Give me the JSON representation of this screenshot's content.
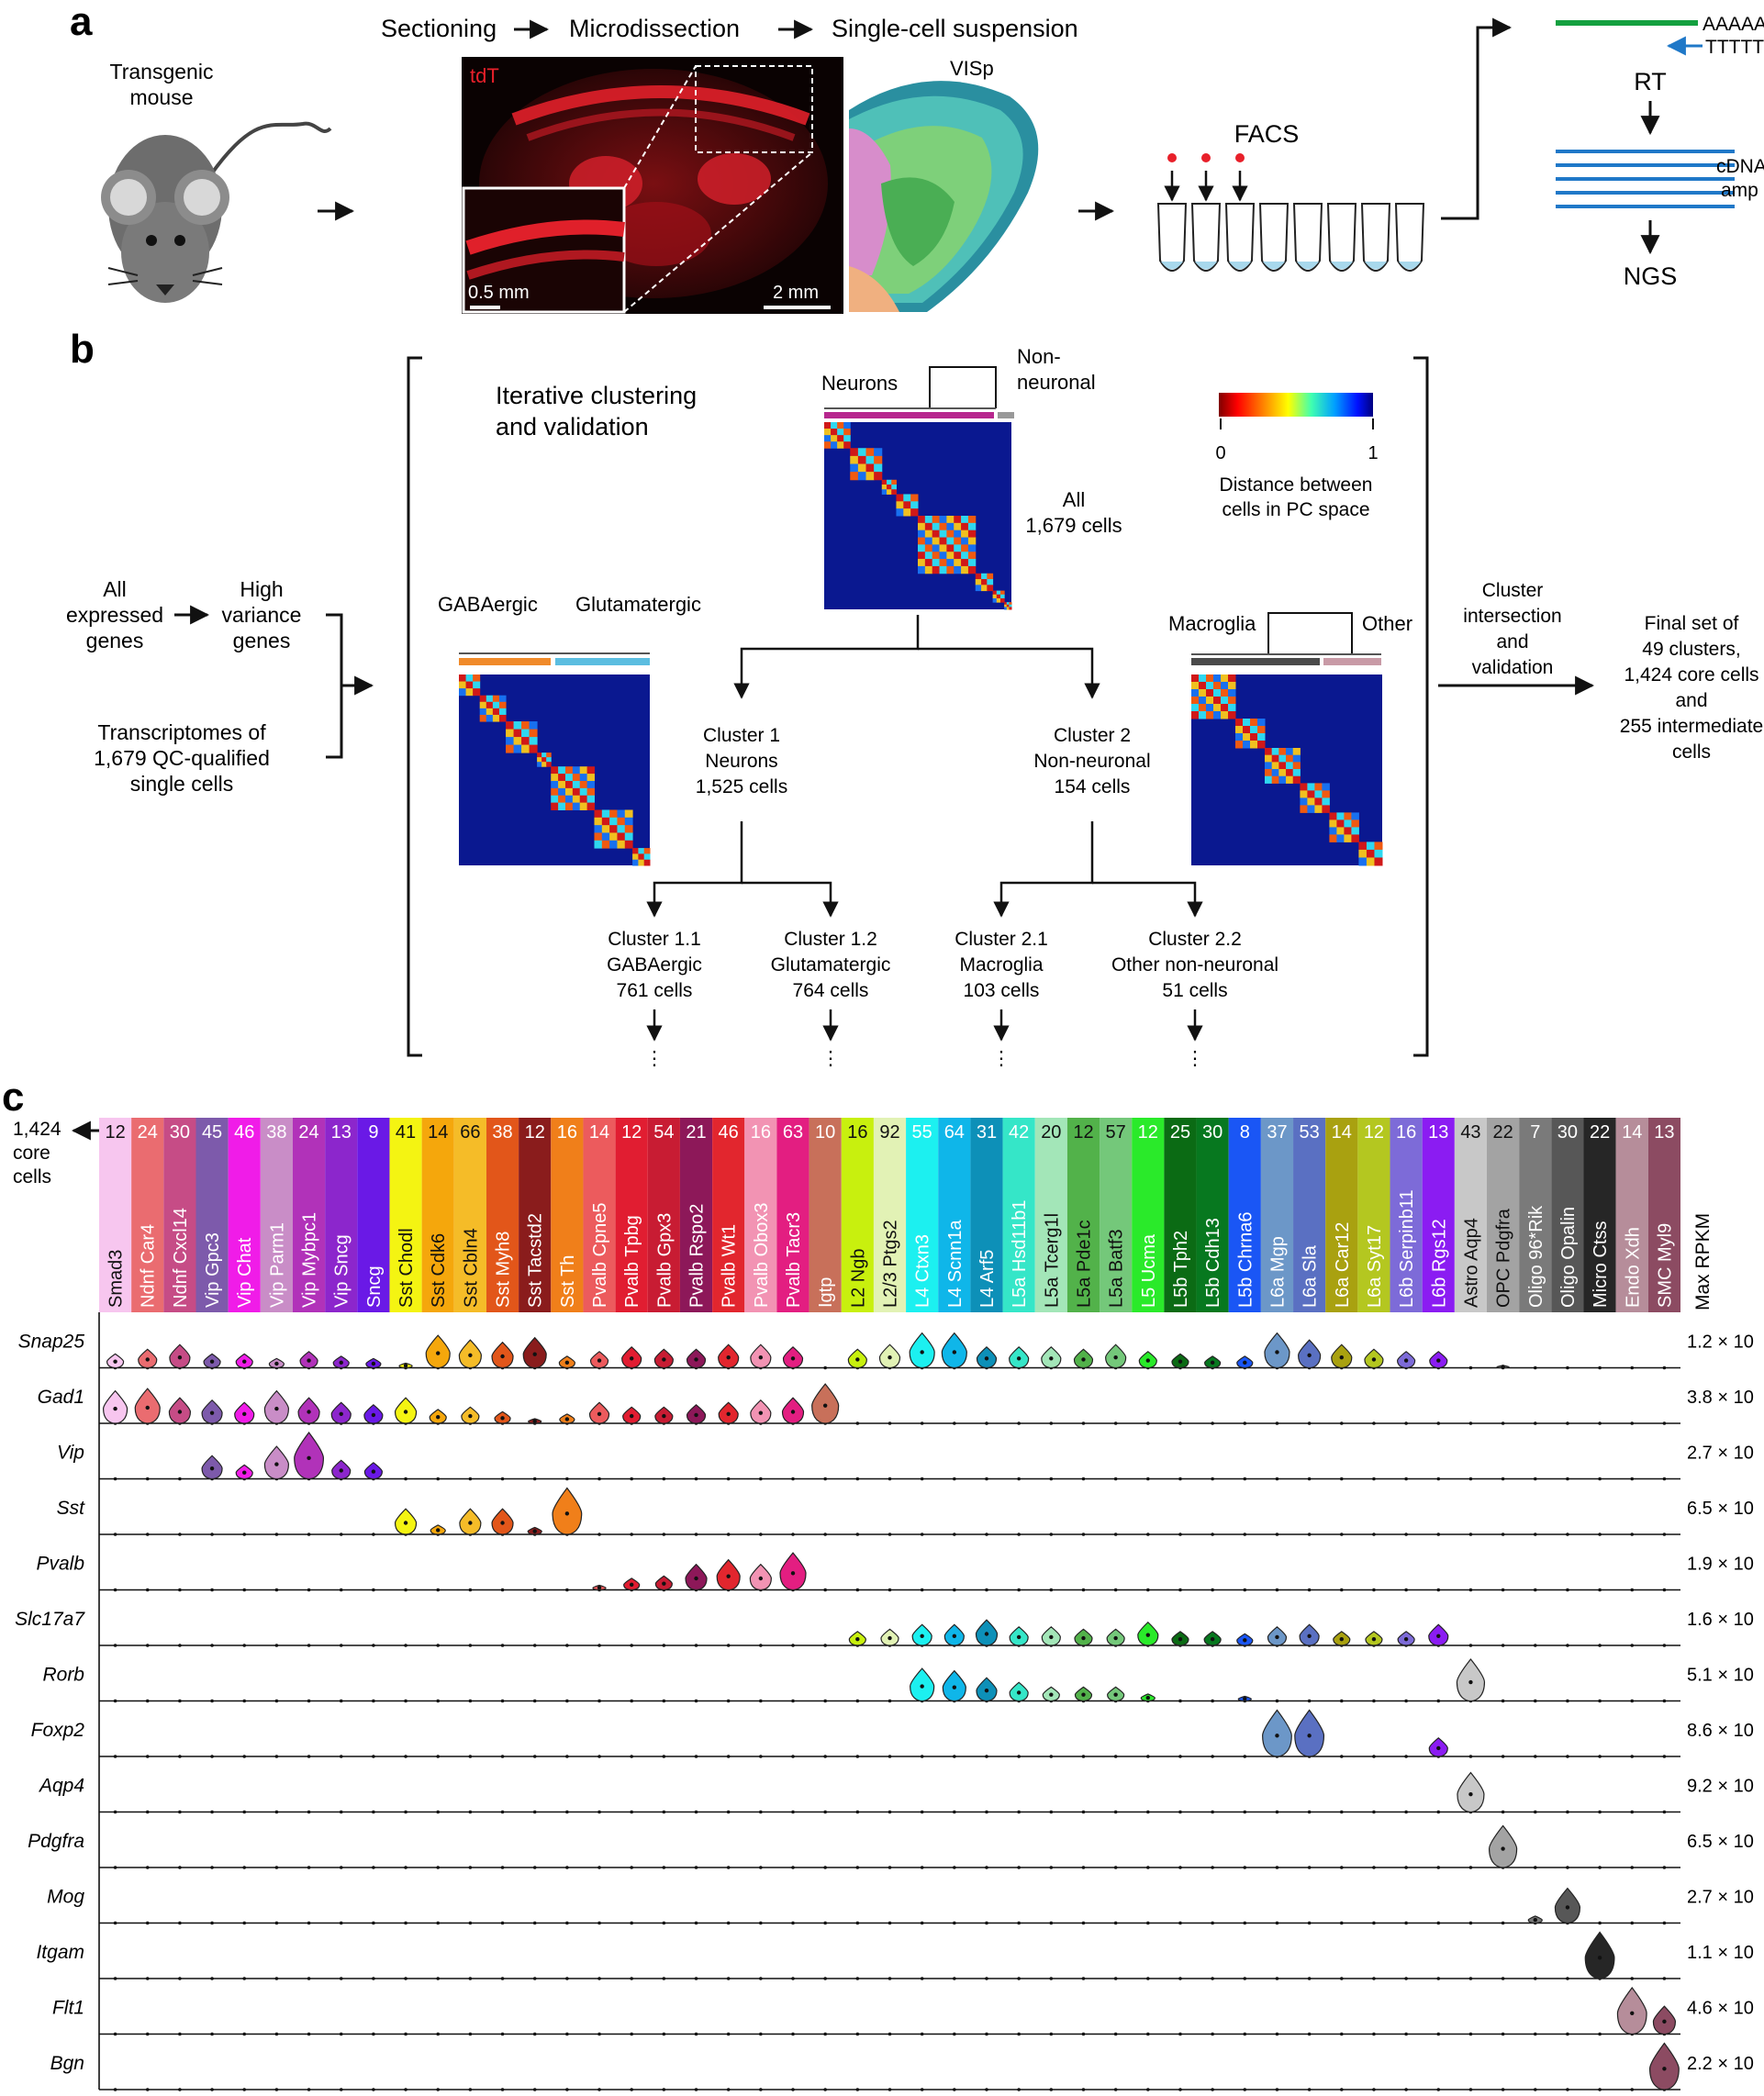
{
  "panels": {
    "a": "a",
    "b": "b",
    "c": "c"
  },
  "a": {
    "mouse_label": [
      "Transgenic",
      "mouse"
    ],
    "steps": [
      "Sectioning",
      "Microdissection",
      "Single-cell suspension"
    ],
    "tdt_label": "tdT",
    "scale_small": "0.5 mm",
    "scale_large": "2 mm",
    "region_label": "VISp",
    "facs_label": "FACS",
    "polya": "AAAAA",
    "oligo_t": "TTTTT",
    "rt_label": "RT",
    "cdna_label": [
      "cDNA",
      "amp"
    ],
    "ngs_label": "NGS"
  },
  "b": {
    "inputs": {
      "all_expressed": [
        "All",
        "expressed",
        "genes"
      ],
      "high_variance": [
        "High",
        "variance",
        "genes"
      ],
      "transcriptomes": [
        "Transcriptomes of",
        "1,679 QC-qualified",
        "single cells"
      ]
    },
    "iterative": [
      "Iterative clustering",
      "and validation"
    ],
    "top_tree": {
      "left": "Neurons",
      "right": [
        "Non-",
        "neuronal"
      ]
    },
    "all_cells": [
      "All",
      "1,679 cells"
    ],
    "colorbar": {
      "min": "0",
      "max": "1",
      "label": [
        "Distance between",
        "cells in PC space"
      ]
    },
    "left_tree": {
      "left": "GABAergic",
      "right": "Glutamatergic"
    },
    "right_tree": {
      "left": "Macroglia",
      "right": "Other"
    },
    "cluster1": [
      "Cluster 1",
      "Neurons",
      "1,525 cells"
    ],
    "cluster2": [
      "Cluster 2",
      "Non-neuronal",
      "154 cells"
    ],
    "sub": [
      [
        "Cluster 1.1",
        "GABAergic",
        "761 cells"
      ],
      [
        "Cluster 1.2",
        "Glutamatergic",
        "764 cells"
      ],
      [
        "Cluster 2.1",
        "Macroglia",
        "103 cells"
      ],
      [
        "Cluster 2.2",
        "Other non-neuronal",
        "51 cells"
      ]
    ],
    "ellipsis": "⋮",
    "intersection": [
      "Cluster",
      "intersection",
      "and",
      "validation"
    ],
    "final": [
      "Final set of",
      "49 clusters,",
      "1,424 core cells",
      "and",
      "255 intermediate",
      "cells"
    ]
  },
  "c": {
    "core_label": [
      "1,424",
      "core",
      "cells"
    ],
    "max_label": "Max RPKM",
    "clusters": [
      {
        "name": "Smad3",
        "count": "12",
        "color": "#f7c6ef",
        "dark": false
      },
      {
        "name": "Ndnf Car4",
        "count": "24",
        "color": "#ea6c70",
        "dark": true
      },
      {
        "name": "Ndnf Cxcl14",
        "count": "30",
        "color": "#c64c86",
        "dark": true
      },
      {
        "name": "Vip Gpc3",
        "count": "45",
        "color": "#7d5aab",
        "dark": true
      },
      {
        "name": "Vip Chat",
        "count": "46",
        "color": "#f01ce8",
        "dark": true
      },
      {
        "name": "Vip Parm1",
        "count": "38",
        "color": "#c98dc7",
        "dark": true
      },
      {
        "name": "Vip Mybpc1",
        "count": "24",
        "color": "#b132b9",
        "dark": true
      },
      {
        "name": "Vip Sncg",
        "count": "13",
        "color": "#8c26cc",
        "dark": true
      },
      {
        "name": "Sncg",
        "count": "9",
        "color": "#6a19e6",
        "dark": true
      },
      {
        "name": "Sst Chodl",
        "count": "41",
        "color": "#f4f412",
        "dark": false
      },
      {
        "name": "Sst Cdk6",
        "count": "14",
        "color": "#f5a70c",
        "dark": false
      },
      {
        "name": "Sst Cbln4",
        "count": "66",
        "color": "#f5bc28",
        "dark": false
      },
      {
        "name": "Sst Myh8",
        "count": "38",
        "color": "#e2561a",
        "dark": true
      },
      {
        "name": "Sst Tacstd2",
        "count": "12",
        "color": "#8a1c1c",
        "dark": true
      },
      {
        "name": "Sst Th",
        "count": "16",
        "color": "#f07f1a",
        "dark": true
      },
      {
        "name": "Pvalb Cpne5",
        "count": "14",
        "color": "#ec5b5d",
        "dark": true
      },
      {
        "name": "Pvalb Tpbg",
        "count": "12",
        "color": "#e11d31",
        "dark": true
      },
      {
        "name": "Pvalb Gpx3",
        "count": "54",
        "color": "#c81c33",
        "dark": true
      },
      {
        "name": "Pvalb Rspo2",
        "count": "21",
        "color": "#8d1859",
        "dark": true
      },
      {
        "name": "Pvalb Wt1",
        "count": "46",
        "color": "#e2262e",
        "dark": true
      },
      {
        "name": "Pvalb Obox3",
        "count": "16",
        "color": "#f293b3",
        "dark": true
      },
      {
        "name": "Pvalb Tacr3",
        "count": "63",
        "color": "#e31e81",
        "dark": true
      },
      {
        "name": "Igtp",
        "count": "10",
        "color": "#c8705a",
        "dark": true
      },
      {
        "name": "L2 Ngb",
        "count": "16",
        "color": "#c8f00e",
        "dark": false
      },
      {
        "name": "L2/3 Ptgs2",
        "count": "92",
        "color": "#e2f2b5",
        "dark": false
      },
      {
        "name": "L4 Ctxn3",
        "count": "55",
        "color": "#1cf0f0",
        "dark": true
      },
      {
        "name": "L4 Scnn1a",
        "count": "64",
        "color": "#0fb6e9",
        "dark": true
      },
      {
        "name": "L4 Arf5",
        "count": "31",
        "color": "#0d90b8",
        "dark": true
      },
      {
        "name": "L5a Hsd11b1",
        "count": "42",
        "color": "#35e6c8",
        "dark": true
      },
      {
        "name": "L5a Tcerg1l",
        "count": "20",
        "color": "#a3e6b8",
        "dark": false
      },
      {
        "name": "L5a Pde1c",
        "count": "12",
        "color": "#52b24a",
        "dark": false
      },
      {
        "name": "L5a Batf3",
        "count": "57",
        "color": "#74c87a",
        "dark": false
      },
      {
        "name": "L5 Ucma",
        "count": "12",
        "color": "#2aea2a",
        "dark": true
      },
      {
        "name": "L5b Tph2",
        "count": "25",
        "color": "#0b6b14",
        "dark": true
      },
      {
        "name": "L5b Cdh13",
        "count": "30",
        "color": "#07781f",
        "dark": true
      },
      {
        "name": "L5b Chrna6",
        "count": "8",
        "color": "#1a56f5",
        "dark": true
      },
      {
        "name": "L6a Mgp",
        "count": "37",
        "color": "#6c97c8",
        "dark": true
      },
      {
        "name": "L6a Sla",
        "count": "53",
        "color": "#5a70c2",
        "dark": true
      },
      {
        "name": "L6a Car12",
        "count": "14",
        "color": "#a9a110",
        "dark": true
      },
      {
        "name": "L6a Syt17",
        "count": "12",
        "color": "#b4c720",
        "dark": true
      },
      {
        "name": "L6b Serpinb11",
        "count": "16",
        "color": "#7d6bd8",
        "dark": true
      },
      {
        "name": "L6b Rgs12",
        "count": "13",
        "color": "#8b1cf2",
        "dark": true
      },
      {
        "name": "Astro Aqp4",
        "count": "43",
        "color": "#c8c8c8",
        "dark": false
      },
      {
        "name": "OPC Pdgfra",
        "count": "22",
        "color": "#a3a3a3",
        "dark": false
      },
      {
        "name": "Oligo 96*Rik",
        "count": "7",
        "color": "#7a7a7a",
        "dark": true
      },
      {
        "name": "Oligo Opalin",
        "count": "30",
        "color": "#575757",
        "dark": true
      },
      {
        "name": "Micro Ctss",
        "count": "22",
        "color": "#262626",
        "dark": true
      },
      {
        "name": "Endo Xdh",
        "count": "14",
        "color": "#b68d9a",
        "dark": true
      },
      {
        "name": "SMC Myl9",
        "count": "13",
        "color": "#8c4b62",
        "dark": true
      }
    ],
    "genes": [
      {
        "name": "Snap25",
        "max": "1.2 × 10",
        "expr": [
          0.3,
          0.4,
          0.5,
          0.3,
          0.3,
          0.2,
          0.35,
          0.25,
          0.2,
          0.1,
          0.7,
          0.6,
          0.55,
          0.65,
          0.25,
          0.35,
          0.45,
          0.4,
          0.4,
          0.5,
          0.5,
          0.45,
          0.0,
          0.4,
          0.5,
          0.75,
          0.75,
          0.45,
          0.45,
          0.45,
          0.4,
          0.5,
          0.35,
          0.3,
          0.25,
          0.25,
          0.75,
          0.6,
          0.5,
          0.4,
          0.35,
          0.35,
          0.0,
          0.05,
          0.0,
          0.0,
          0.0,
          0.0,
          0.0
        ]
      },
      {
        "name": "Gad1",
        "max": "3.8 × 10",
        "expr": [
          0.7,
          0.75,
          0.55,
          0.5,
          0.45,
          0.7,
          0.55,
          0.45,
          0.4,
          0.55,
          0.3,
          0.35,
          0.25,
          0.1,
          0.2,
          0.45,
          0.35,
          0.35,
          0.4,
          0.45,
          0.5,
          0.55,
          0.85,
          0,
          0,
          0,
          0,
          0,
          0,
          0,
          0,
          0,
          0,
          0,
          0,
          0,
          0,
          0,
          0,
          0,
          0,
          0,
          0,
          0,
          0,
          0,
          0,
          0,
          0
        ]
      },
      {
        "name": "Vip",
        "max": "2.7 × 10",
        "expr": [
          0,
          0,
          0,
          0.5,
          0.3,
          0.7,
          1.0,
          0.4,
          0.35,
          0,
          0,
          0,
          0,
          0,
          0,
          0,
          0,
          0,
          0,
          0,
          0,
          0,
          0,
          0,
          0,
          0,
          0,
          0,
          0,
          0,
          0,
          0,
          0,
          0,
          0,
          0,
          0,
          0,
          0,
          0,
          0,
          0,
          0,
          0,
          0,
          0,
          0,
          0,
          0
        ]
      },
      {
        "name": "Sst",
        "max": "6.5 × 10",
        "expr": [
          0,
          0,
          0,
          0,
          0,
          0,
          0,
          0,
          0,
          0.55,
          0.2,
          0.55,
          0.55,
          0.15,
          1.0,
          0,
          0,
          0,
          0,
          0,
          0,
          0,
          0,
          0,
          0,
          0,
          0,
          0,
          0,
          0,
          0,
          0,
          0,
          0,
          0,
          0,
          0,
          0,
          0,
          0,
          0,
          0,
          0,
          0,
          0,
          0,
          0,
          0,
          0
        ]
      },
      {
        "name": "Pvalb",
        "max": "1.9 × 10",
        "expr": [
          0,
          0,
          0,
          0,
          0,
          0,
          0,
          0,
          0,
          0,
          0,
          0,
          0,
          0,
          0,
          0.1,
          0.25,
          0.3,
          0.55,
          0.65,
          0.55,
          0.8,
          0,
          0,
          0,
          0,
          0,
          0,
          0,
          0,
          0,
          0,
          0,
          0,
          0,
          0,
          0,
          0,
          0,
          0,
          0,
          0,
          0,
          0,
          0,
          0,
          0,
          0,
          0
        ]
      },
      {
        "name": "Slc17a7",
        "max": "1.6 × 10",
        "expr": [
          0,
          0,
          0,
          0,
          0,
          0,
          0,
          0,
          0,
          0,
          0,
          0,
          0,
          0,
          0,
          0,
          0,
          0,
          0,
          0,
          0,
          0,
          0,
          0.3,
          0.35,
          0.45,
          0.45,
          0.55,
          0.4,
          0.4,
          0.35,
          0.35,
          0.5,
          0.3,
          0.3,
          0.25,
          0.4,
          0.45,
          0.3,
          0.3,
          0.3,
          0.45,
          0,
          0,
          0,
          0,
          0,
          0,
          0
        ]
      },
      {
        "name": "Rorb",
        "max": "5.1 × 10",
        "expr": [
          0,
          0,
          0,
          0,
          0,
          0,
          0,
          0,
          0,
          0,
          0,
          0,
          0,
          0,
          0,
          0,
          0,
          0,
          0,
          0,
          0,
          0,
          0,
          0,
          0,
          0.7,
          0.65,
          0.5,
          0.4,
          0.3,
          0.3,
          0.3,
          0.15,
          0,
          0,
          0.1,
          0,
          0,
          0,
          0,
          0,
          0,
          0.9,
          0,
          0,
          0,
          0,
          0,
          0
        ]
      },
      {
        "name": "Foxp2",
        "max": "8.6 × 10",
        "expr": [
          0,
          0,
          0,
          0,
          0,
          0,
          0,
          0,
          0,
          0,
          0,
          0,
          0,
          0,
          0,
          0,
          0,
          0,
          0,
          0,
          0,
          0,
          0,
          0,
          0,
          0,
          0,
          0,
          0,
          0,
          0,
          0,
          0,
          0,
          0,
          0,
          1.0,
          1.0,
          0,
          0,
          0,
          0.4,
          0,
          0,
          0,
          0,
          0,
          0,
          0
        ]
      },
      {
        "name": "Aqp4",
        "max": "9.2 × 10",
        "expr": [
          0,
          0,
          0,
          0,
          0,
          0,
          0,
          0,
          0,
          0,
          0,
          0,
          0,
          0,
          0,
          0,
          0,
          0,
          0,
          0,
          0,
          0,
          0,
          0,
          0,
          0,
          0,
          0,
          0,
          0,
          0,
          0,
          0,
          0,
          0,
          0,
          0,
          0,
          0,
          0,
          0,
          0,
          0.85,
          0,
          0,
          0,
          0,
          0,
          0
        ]
      },
      {
        "name": "Pdgfra",
        "max": "6.5 × 10",
        "expr": [
          0,
          0,
          0,
          0,
          0,
          0,
          0,
          0,
          0,
          0,
          0,
          0,
          0,
          0,
          0,
          0,
          0,
          0,
          0,
          0,
          0,
          0,
          0,
          0,
          0,
          0,
          0,
          0,
          0,
          0,
          0,
          0,
          0,
          0,
          0,
          0,
          0,
          0,
          0,
          0,
          0,
          0,
          0,
          0.9,
          0,
          0,
          0,
          0,
          0
        ]
      },
      {
        "name": "Mog",
        "max": "2.7 × 10",
        "expr": [
          0,
          0,
          0,
          0,
          0,
          0,
          0,
          0,
          0,
          0,
          0,
          0,
          0,
          0,
          0,
          0,
          0,
          0,
          0,
          0,
          0,
          0,
          0,
          0,
          0,
          0,
          0,
          0,
          0,
          0,
          0,
          0,
          0,
          0,
          0,
          0,
          0,
          0,
          0,
          0,
          0,
          0,
          0,
          0,
          0.15,
          0.75,
          0,
          0,
          0
        ]
      },
      {
        "name": "Itgam",
        "max": "1.1 × 10",
        "expr": [
          0,
          0,
          0,
          0,
          0,
          0,
          0,
          0,
          0,
          0,
          0,
          0,
          0,
          0,
          0,
          0,
          0,
          0,
          0,
          0,
          0,
          0,
          0,
          0,
          0,
          0,
          0,
          0,
          0,
          0,
          0,
          0,
          0,
          0,
          0,
          0,
          0,
          0,
          0,
          0,
          0,
          0,
          0,
          0,
          0,
          0,
          1.0,
          0,
          0
        ]
      },
      {
        "name": "Flt1",
        "max": "4.6 × 10",
        "expr": [
          0,
          0,
          0,
          0,
          0,
          0,
          0,
          0,
          0,
          0,
          0,
          0,
          0,
          0,
          0,
          0,
          0,
          0,
          0,
          0,
          0,
          0,
          0,
          0,
          0,
          0,
          0,
          0,
          0,
          0,
          0,
          0,
          0,
          0,
          0,
          0,
          0,
          0,
          0,
          0,
          0,
          0,
          0,
          0,
          0,
          0,
          0,
          1.0,
          0.6
        ]
      },
      {
        "name": "Bgn",
        "max": "2.2 × 10",
        "expr": [
          0,
          0,
          0,
          0,
          0,
          0,
          0,
          0,
          0,
          0,
          0,
          0,
          0,
          0,
          0,
          0,
          0,
          0,
          0,
          0,
          0,
          0,
          0,
          0,
          0,
          0,
          0,
          0,
          0,
          0,
          0,
          0,
          0,
          0,
          0,
          0,
          0,
          0,
          0,
          0,
          0,
          0,
          0,
          0,
          0,
          0,
          0,
          0,
          1.0
        ]
      }
    ]
  },
  "colors": {
    "tdt": "#e8202a",
    "cluster_gaba": "#f08a2a",
    "cluster_glut": "#5bbde0",
    "non_neuronal": "#999999",
    "neurons": "#b7278e",
    "macro": "#4a4a4a",
    "other": "#c89aa6",
    "arrow_blue": "#1f78c8",
    "green_strand": "#14a040",
    "cdna": "#1f78c8"
  }
}
